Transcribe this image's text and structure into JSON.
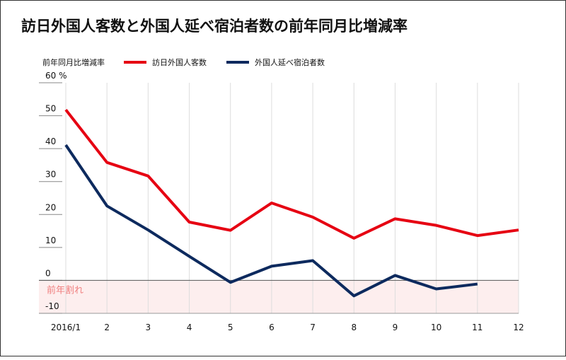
{
  "chart_data": {
    "type": "line",
    "title": "訪日外国人客数と外国人延べ宿泊者数の前年同月比増減率",
    "legend_title": "前年同月比増減率",
    "annotation": "前年割れ",
    "categories": [
      "2016/1",
      "2",
      "3",
      "4",
      "5",
      "6",
      "7",
      "8",
      "9",
      "10",
      "11",
      "12"
    ],
    "series": [
      {
        "name": "訪日外国人客数",
        "color": "#e60012",
        "values": [
          51.8,
          35.8,
          31.7,
          17.7,
          15.2,
          23.5,
          19.2,
          12.8,
          18.7,
          16.7,
          13.6,
          15.3
        ]
      },
      {
        "name": "外国人延べ宿泊者数",
        "color": "#0d2a5e",
        "values": [
          41.1,
          22.6,
          15.3,
          7.3,
          -0.6,
          4.3,
          6.0,
          -4.7,
          1.5,
          -2.6,
          -1.1,
          null
        ]
      }
    ],
    "ylim": [
      -10,
      60
    ],
    "yticks": [
      -10,
      0,
      10,
      20,
      30,
      40,
      50,
      {
        "value": 60,
        "label": "60 %"
      }
    ]
  }
}
